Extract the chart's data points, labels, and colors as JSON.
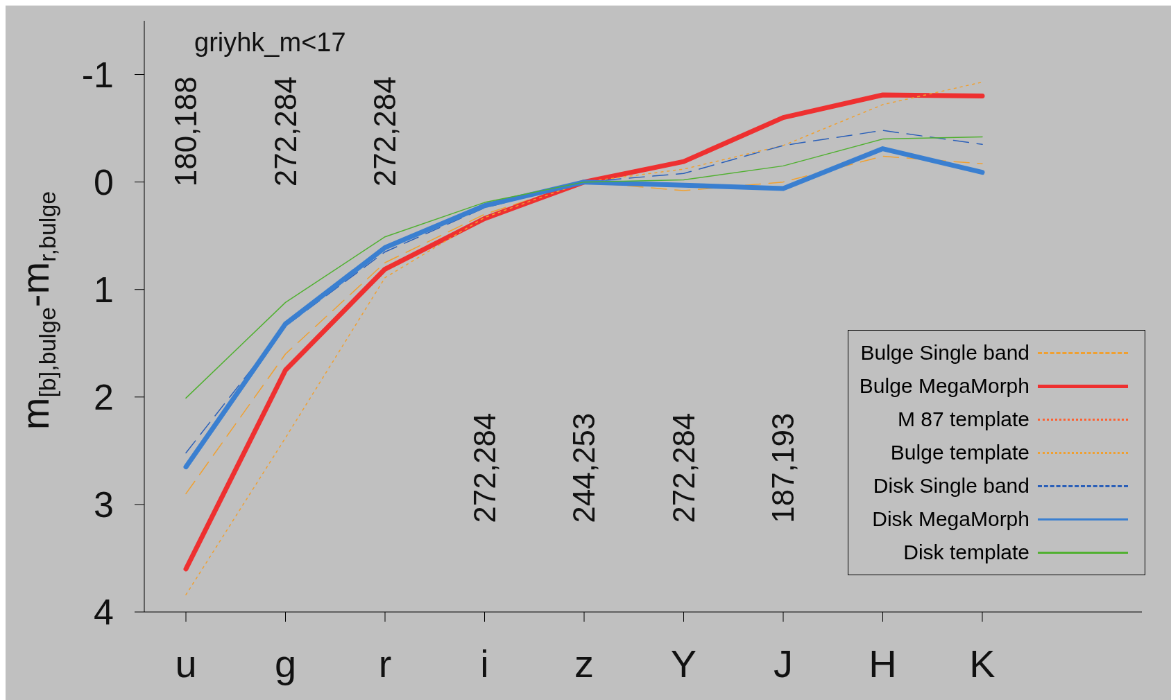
{
  "chart_data": {
    "type": "line",
    "ylabel": "m$_{[b],bulge}$-m$_{r,bulge}$",
    "categories": [
      "u",
      "g",
      "r",
      "i",
      "z",
      "Y",
      "J",
      "H",
      "K"
    ],
    "ylim": [
      4,
      -1.5
    ],
    "yticks": [
      -1,
      0,
      1,
      2,
      3,
      4
    ],
    "grid": false,
    "legend": "bottom right",
    "series": [
      {
        "name": "Bulge Single band",
        "color": "#f0a030",
        "line_style": "dashed",
        "values": [
          2.9,
          1.6,
          0.75,
          0.3,
          0,
          0.08,
          0.0,
          -0.24,
          -0.17
        ]
      },
      {
        "name": "Bulge MegaMorph",
        "color": "#ee3030",
        "line_style": "solid",
        "values": [
          3.6,
          1.75,
          0.81,
          0.34,
          0,
          -0.19,
          -0.6,
          -0.81,
          -0.8
        ]
      },
      {
        "name": "M 87 template",
        "color": "#ff6030",
        "line_style": "dotted",
        "values": [
          null,
          null,
          null,
          null,
          null,
          null,
          null,
          null,
          null
        ]
      },
      {
        "name": "Bulge template",
        "color": "#f0a030",
        "line_style": "dotted",
        "values": [
          3.84,
          2.38,
          0.89,
          0.33,
          0,
          -0.12,
          -0.34,
          -0.72,
          -0.93
        ]
      },
      {
        "name": "Disk Single band",
        "color": "#2a5fb8",
        "line_style": "dashed",
        "values": [
          2.52,
          1.34,
          0.65,
          0.24,
          0,
          -0.08,
          -0.34,
          -0.48,
          -0.35
        ]
      },
      {
        "name": "Disk MegaMorph",
        "color": "#3a7fd0",
        "line_style": "solid",
        "values": [
          2.65,
          1.32,
          0.61,
          0.22,
          0,
          0.03,
          0.06,
          -0.31,
          -0.09
        ]
      },
      {
        "name": "Disk template",
        "color": "#50b030",
        "line_style": "solid",
        "values": [
          2.01,
          1.12,
          0.51,
          0.19,
          0,
          -0.02,
          -0.15,
          -0.4,
          -0.42
        ]
      }
    ],
    "annotations": [
      "griyhk_m<17",
      "180,188",
      "272,284",
      "272,284",
      "272,284",
      "244,253",
      "272,284",
      "187,193"
    ]
  }
}
